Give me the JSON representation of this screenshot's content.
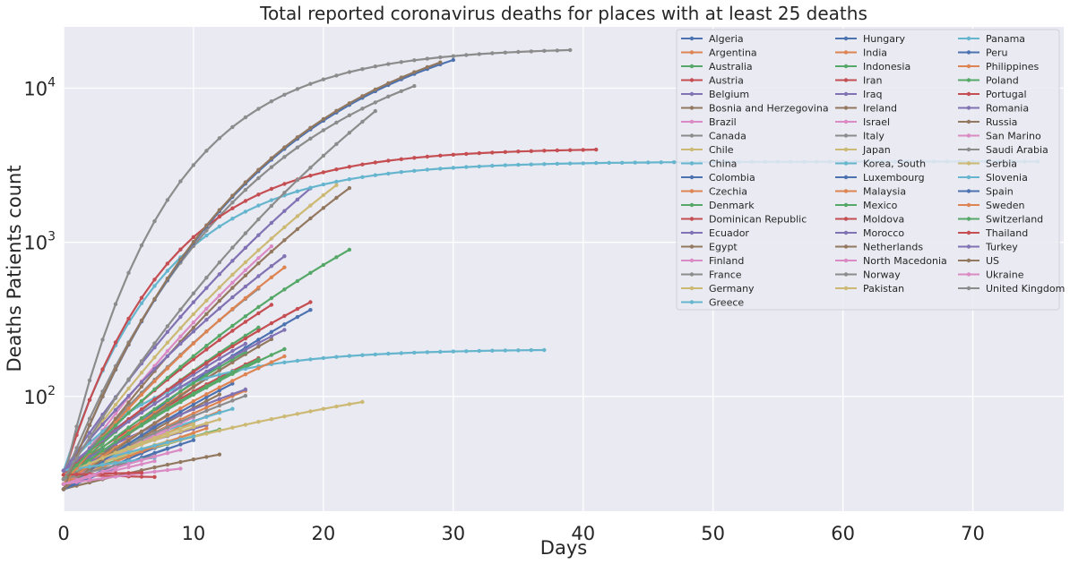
{
  "chart_data": {
    "type": "line",
    "title": "Total reported coronavirus deaths for places with at least 25 deaths",
    "xlabel": "Days",
    "ylabel": "Deaths Patients count",
    "y_scale": "log",
    "xlim": [
      0,
      77
    ],
    "ylim": [
      18,
      25000
    ],
    "x_ticks": [
      0,
      10,
      20,
      30,
      40,
      50,
      60,
      70
    ],
    "y_ticks": [
      {
        "value": 100,
        "base": "10",
        "exp": "2"
      },
      {
        "value": 1000,
        "base": "10",
        "exp": "3"
      },
      {
        "value": 10000,
        "base": "10",
        "exp": "4"
      }
    ],
    "grid": true,
    "legend_position": "top-right",
    "colors": [
      "#4c72b0",
      "#dd8452",
      "#55a868",
      "#c44e52",
      "#8172b3",
      "#937860",
      "#da8bc3",
      "#8c8c8c",
      "#ccb974",
      "#64b5cd"
    ],
    "series": [
      {
        "name": "Algeria",
        "end_day": 19,
        "end": 364
      },
      {
        "name": "Argentina",
        "end_day": 14,
        "end": 109
      },
      {
        "name": "Australia",
        "end_day": 12,
        "end": 61
      },
      {
        "name": "Austria",
        "end_day": 16,
        "end": 393
      },
      {
        "name": "Belgium",
        "end_day": 19,
        "end": 2240
      },
      {
        "name": "Bosnia and Herzegovina",
        "end_day": 12,
        "end": 42
      },
      {
        "name": "Brazil",
        "end_day": 16,
        "end": 941
      },
      {
        "name": "Canada",
        "end_day": 15,
        "end": 500
      },
      {
        "name": "Chile",
        "end_day": 10,
        "end": 57
      },
      {
        "name": "China",
        "end_day": 75,
        "end": 3340
      },
      {
        "name": "Colombia",
        "end_day": 8,
        "end": 46
      },
      {
        "name": "Czechia",
        "end_day": 12,
        "end": 80
      },
      {
        "name": "Denmark",
        "end_day": 17,
        "end": 203
      },
      {
        "name": "Dominican Republic",
        "end_day": 15,
        "end": 177
      },
      {
        "name": "Ecuador",
        "end_day": 14,
        "end": 220
      },
      {
        "name": "Egypt",
        "end_day": 12,
        "end": 103
      },
      {
        "name": "Finland",
        "end_day": 8,
        "end": 59
      },
      {
        "name": "France",
        "end_day": 27,
        "end": 10328
      },
      {
        "name": "Germany",
        "end_day": 21,
        "end": 2349
      },
      {
        "name": "Greece",
        "end_day": 13,
        "end": 83
      },
      {
        "name": "Hungary",
        "end_day": 8,
        "end": 50
      },
      {
        "name": "India",
        "end_day": 13,
        "end": 166
      },
      {
        "name": "Indonesia",
        "end_day": 15,
        "end": 280
      },
      {
        "name": "Iran",
        "end_day": 41,
        "end": 3993
      },
      {
        "name": "Iraq",
        "end_day": 11,
        "end": 65
      },
      {
        "name": "Ireland",
        "end_day": 16,
        "end": 235
      },
      {
        "name": "Israel",
        "end_day": 10,
        "end": 73
      },
      {
        "name": "Italy",
        "end_day": 39,
        "end": 17669
      },
      {
        "name": "Japan",
        "end_day": 23,
        "end": 92
      },
      {
        "name": "Korea, South",
        "end_day": 37,
        "end": 200
      },
      {
        "name": "Luxembourg",
        "end_day": 10,
        "end": 52
      },
      {
        "name": "Malaysia",
        "end_day": 11,
        "end": 62
      },
      {
        "name": "Mexico",
        "end_day": 14,
        "end": 194
      },
      {
        "name": "Moldova",
        "end_day": 7,
        "end": 30
      },
      {
        "name": "Morocco",
        "end_day": 14,
        "end": 111
      },
      {
        "name": "Netherlands",
        "end_day": 22,
        "end": 2248
      },
      {
        "name": "North Macedonia",
        "end_day": 7,
        "end": 38
      },
      {
        "name": "Norway",
        "end_day": 14,
        "end": 101
      },
      {
        "name": "Pakistan",
        "end_day": 12,
        "end": 71
      },
      {
        "name": "Panama",
        "end_day": 10,
        "end": 55
      },
      {
        "name": "Peru",
        "end_day": 13,
        "end": 121
      },
      {
        "name": "Philippines",
        "end_day": 17,
        "end": 182
      },
      {
        "name": "Poland",
        "end_day": 15,
        "end": 174
      },
      {
        "name": "Portugal",
        "end_day": 19,
        "end": 409
      },
      {
        "name": "Romania",
        "end_day": 17,
        "end": 270
      },
      {
        "name": "Russia",
        "end_day": 8,
        "end": 76
      },
      {
        "name": "San Marino",
        "end_day": 9,
        "end": 34
      },
      {
        "name": "Saudi Arabia",
        "end_day": 7,
        "end": 41
      },
      {
        "name": "Serbia",
        "end_day": 10,
        "end": 66
      },
      {
        "name": "Slovenia",
        "end_day": 7,
        "end": 40
      },
      {
        "name": "Spain",
        "end_day": 30,
        "end": 15238
      },
      {
        "name": "Sweden",
        "end_day": 17,
        "end": 687
      },
      {
        "name": "Switzerland",
        "end_day": 22,
        "end": 895
      },
      {
        "name": "Thailand",
        "end_day": 6,
        "end": 32
      },
      {
        "name": "Turkey",
        "end_day": 17,
        "end": 812
      },
      {
        "name": "US",
        "end_day": 29,
        "end": 14695
      },
      {
        "name": "Ukraine",
        "end_day": 9,
        "end": 45
      },
      {
        "name": "United Kingdom",
        "end_day": 24,
        "end": 7097
      }
    ]
  }
}
